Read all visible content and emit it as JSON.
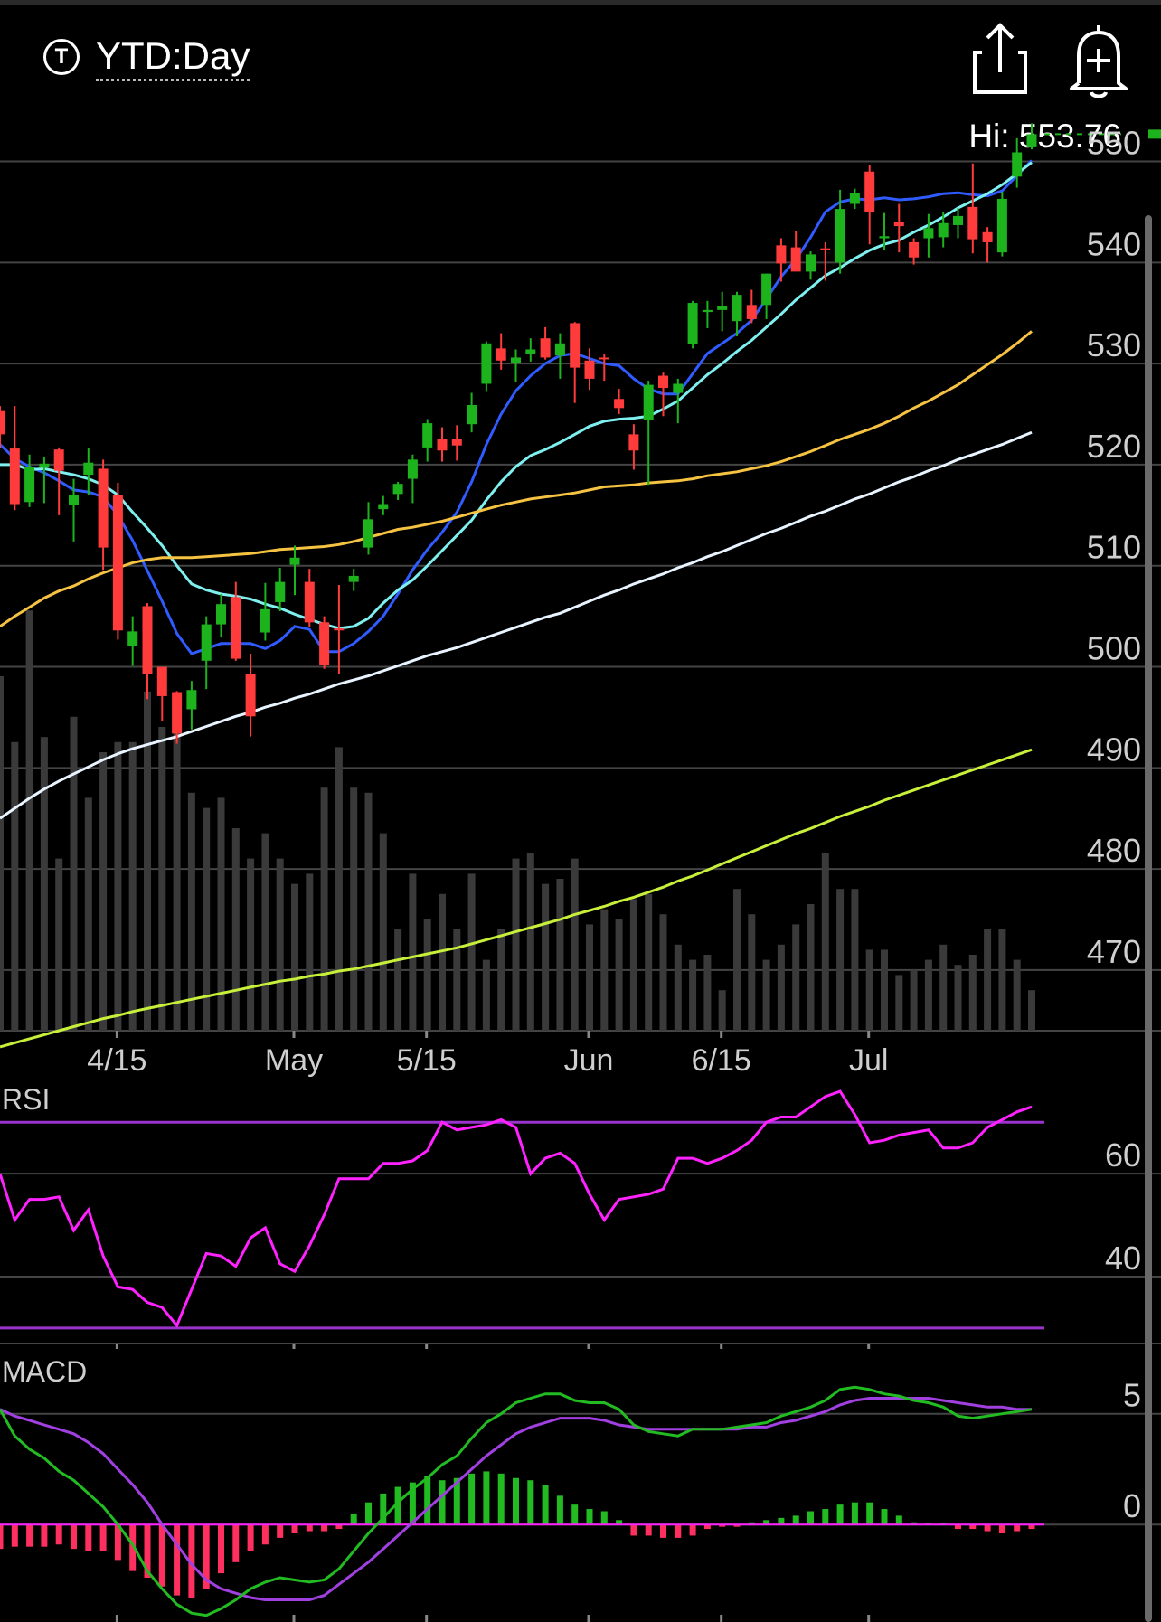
{
  "header": {
    "badge_letter": "T",
    "period_label": "YTD:Day",
    "share_icon": "share-icon",
    "alert_icon": "bell-plus-icon",
    "hi_label": "Hi: 553.76"
  },
  "colors": {
    "up": "#1db31d",
    "down": "#ff3b3b",
    "ma_blue": "#2f5bff",
    "ma_cyan": "#7ff0f0",
    "ma_orange": "#f5c242",
    "ma_white": "#e8f4ff",
    "ma_lime": "#c8f03a",
    "rsi": "#ff22ff",
    "rsi_bands": "#9933cc",
    "macd_line": "#22bb22",
    "signal_line": "#a040e0",
    "hist_pos": "#22bb22",
    "hist_neg": "#ff2f5f",
    "volume": "#3a3a3a",
    "grid": "#444444"
  },
  "chart_data": [
    {
      "type": "candlestick",
      "panel": "price",
      "x_labels": [
        "4/15",
        "May",
        "5/15",
        "Jun",
        "6/15",
        "Jul"
      ],
      "y_ticks": [
        "550",
        "540",
        "530",
        "520",
        "510",
        "500",
        "490",
        "480",
        "470"
      ],
      "ylim": [
        464,
        553
      ],
      "high_label": "Hi: 553.76",
      "candles": [
        [
          525.3,
          523.0,
          525.8,
          521.6
        ],
        [
          521.6,
          516.1,
          525.8,
          515.5
        ],
        [
          516.3,
          519.8,
          521.0,
          515.8
        ],
        [
          519.7,
          520.1,
          520.8,
          516.2
        ],
        [
          521.5,
          519.4,
          521.7,
          515.0
        ],
        [
          516.0,
          517.0,
          518.6,
          512.4
        ],
        [
          519.0,
          520.2,
          521.6,
          517.0
        ],
        [
          519.6,
          511.8,
          520.5,
          509.6
        ],
        [
          517.0,
          503.6,
          518.2,
          502.7
        ],
        [
          502.1,
          503.5,
          505.0,
          500.1
        ],
        [
          506.0,
          499.3,
          506.3,
          496.8
        ],
        [
          500.0,
          497.1,
          500.0,
          494.6
        ],
        [
          497.5,
          493.4,
          497.6,
          492.4
        ],
        [
          495.8,
          497.7,
          498.6,
          493.8
        ],
        [
          500.6,
          504.2,
          505.0,
          497.8
        ],
        [
          504.2,
          506.2,
          507.2,
          503.0
        ],
        [
          506.9,
          500.8,
          508.4,
          500.6
        ],
        [
          499.3,
          495.1,
          501.3,
          493.1
        ],
        [
          503.4,
          505.7,
          508.3,
          502.6
        ],
        [
          506.4,
          508.4,
          509.8,
          505.5
        ],
        [
          510.1,
          510.8,
          512.0,
          507.1
        ],
        [
          508.4,
          504.4,
          509.7,
          503.9
        ],
        [
          504.4,
          500.2,
          505.0,
          499.8
        ],
        [
          503.8,
          503.6,
          508.1,
          499.3
        ],
        [
          508.4,
          509.0,
          509.7,
          507.5
        ],
        [
          511.8,
          514.6,
          516.3,
          511.1
        ],
        [
          515.6,
          516.1,
          516.9,
          515.0
        ],
        [
          517.1,
          518.1,
          518.3,
          516.5
        ],
        [
          518.6,
          520.5,
          521.0,
          516.2
        ],
        [
          521.7,
          524.1,
          524.5,
          520.3
        ],
        [
          522.5,
          521.4,
          523.7,
          520.3
        ],
        [
          522.5,
          521.9,
          523.9,
          520.4
        ],
        [
          524.0,
          525.9,
          527.1,
          523.2
        ],
        [
          528.0,
          532.0,
          532.2,
          527.2
        ],
        [
          531.5,
          530.3,
          533.0,
          529.4
        ],
        [
          530.1,
          530.6,
          531.4,
          528.2
        ],
        [
          531.0,
          531.4,
          532.5,
          530.2
        ],
        [
          532.5,
          530.6,
          533.6,
          530.4
        ],
        [
          530.8,
          532.0,
          533.0,
          528.5
        ],
        [
          534.0,
          529.6,
          534.1,
          526.1
        ],
        [
          530.3,
          528.5,
          531.5,
          527.4
        ],
        [
          530.6,
          530.5,
          531.0,
          528.3
        ],
        [
          526.5,
          525.6,
          527.5,
          525.0
        ],
        [
          523.0,
          521.4,
          524.0,
          519.5
        ],
        [
          524.4,
          527.9,
          528.3,
          518.0
        ],
        [
          528.8,
          527.6,
          529.1,
          524.8
        ],
        [
          527.1,
          528.0,
          528.5,
          524.1
        ],
        [
          531.9,
          536.0,
          536.2,
          531.5
        ],
        [
          535.1,
          535.3,
          536.2,
          533.5
        ],
        [
          535.3,
          535.7,
          537.1,
          533.2
        ],
        [
          534.2,
          536.8,
          537.1,
          532.7
        ],
        [
          535.8,
          534.4,
          537.3,
          534.0
        ],
        [
          535.8,
          538.9,
          538.9,
          534.4
        ],
        [
          541.7,
          539.9,
          542.4,
          538.1
        ],
        [
          541.5,
          539.1,
          543.1,
          539.2
        ],
        [
          539.1,
          540.8,
          541.1,
          538.3
        ],
        [
          541.4,
          541.3,
          542.0,
          538.2
        ],
        [
          540.0,
          545.3,
          547.2,
          538.9
        ],
        [
          545.8,
          546.9,
          547.3,
          545.3
        ],
        [
          549.0,
          545.0,
          549.6,
          541.8
        ],
        [
          542.4,
          542.6,
          544.9,
          541.2
        ],
        [
          544.0,
          543.6,
          545.8,
          541.0
        ],
        [
          542.0,
          540.5,
          542.4,
          539.8
        ],
        [
          542.4,
          543.4,
          544.8,
          540.5
        ],
        [
          542.5,
          543.9,
          545.0,
          541.5
        ],
        [
          543.7,
          544.6,
          545.4,
          542.4
        ],
        [
          545.5,
          542.3,
          549.8,
          540.9
        ],
        [
          543.0,
          542.0,
          543.5,
          540.0
        ],
        [
          541.0,
          546.3,
          547.0,
          540.6
        ],
        [
          548.5,
          550.9,
          552.3,
          547.4
        ],
        [
          551.4,
          552.7,
          553.76,
          551.2
        ]
      ],
      "volume": [
        0.7,
        0.57,
        0.83,
        0.58,
        0.34,
        0.62,
        0.46,
        0.55,
        0.57,
        0.57,
        0.67,
        0.6,
        0.63,
        0.47,
        0.44,
        0.46,
        0.4,
        0.34,
        0.39,
        0.34,
        0.29,
        0.31,
        0.48,
        0.56,
        0.48,
        0.47,
        0.39,
        0.2,
        0.31,
        0.22,
        0.27,
        0.2,
        0.31,
        0.14,
        0.2,
        0.34,
        0.35,
        0.29,
        0.3,
        0.34,
        0.21,
        0.24,
        0.22,
        0.26,
        0.27,
        0.23,
        0.17,
        0.14,
        0.15,
        0.08,
        0.28,
        0.23,
        0.14,
        0.17,
        0.21,
        0.25,
        0.35,
        0.28,
        0.28,
        0.16,
        0.16,
        0.11,
        0.12,
        0.14,
        0.17,
        0.13,
        0.15,
        0.2,
        0.2,
        0.14,
        0.08
      ],
      "moving_averages": [
        {
          "color_key": "ma_blue",
          "values": [
            522,
            520.6,
            519.8,
            519.2,
            518.4,
            517.5,
            517.3,
            516.8,
            515.0,
            512.5,
            509.5,
            506.5,
            503.3,
            501.3,
            501.8,
            502.3,
            502.3,
            502.3,
            501.8,
            502.6,
            504.0,
            503.7,
            501.5,
            501.5,
            502.3,
            503.5,
            505.0,
            507.2,
            509.6,
            511.6,
            513.3,
            515.3,
            518.3,
            522.0,
            525.0,
            527.3,
            528.8,
            530.0,
            530.8,
            531.0,
            530.5,
            530.0,
            529.8,
            528.5,
            527.5,
            527.0,
            527.0,
            529.0,
            531.0,
            532.0,
            533.0,
            534.3,
            536.4,
            538.6,
            540.3,
            542.5,
            545.0,
            546.0,
            546.3,
            546.2,
            546.4,
            546.2,
            546.3,
            546.5,
            546.8,
            546.9,
            546.7,
            546.6,
            547.1,
            548.6,
            550.1
          ]
        },
        {
          "color_key": "ma_cyan",
          "values": [
            520.0,
            520.0,
            519.5,
            519.6,
            519.3,
            519.0,
            518.6,
            518.0,
            517.0,
            515.3,
            513.7,
            512.0,
            510.0,
            508.2,
            507.6,
            507.2,
            507.0,
            506.7,
            506.2,
            505.8,
            505.2,
            504.7,
            504.2,
            503.8,
            504.0,
            504.8,
            506.3,
            507.6,
            508.6,
            510.0,
            511.5,
            513.0,
            514.5,
            516.5,
            518.3,
            519.8,
            520.9,
            521.5,
            522.2,
            523.0,
            523.8,
            524.3,
            524.5,
            524.6,
            524.8,
            525.5,
            526.3,
            527.6,
            528.9,
            530.0,
            531.2,
            532.3,
            533.6,
            534.9,
            536.3,
            537.5,
            538.7,
            539.5,
            540.4,
            541.2,
            541.8,
            542.2,
            543.0,
            543.7,
            544.5,
            545.4,
            546.1,
            546.8,
            547.7,
            548.8,
            549.9
          ]
        },
        {
          "color_key": "ma_orange",
          "values": [
            504.0,
            505.0,
            505.9,
            506.8,
            507.5,
            508.0,
            508.7,
            509.3,
            509.8,
            510.3,
            510.6,
            510.8,
            510.8,
            510.8,
            510.9,
            511.0,
            511.1,
            511.2,
            511.4,
            511.6,
            511.7,
            511.8,
            511.9,
            512.1,
            512.4,
            512.8,
            513.2,
            513.6,
            513.8,
            514.1,
            514.4,
            514.8,
            515.2,
            515.6,
            516.0,
            516.3,
            516.6,
            516.8,
            517.0,
            517.2,
            517.5,
            517.8,
            517.9,
            518.0,
            518.2,
            518.3,
            518.4,
            518.6,
            518.9,
            519.1,
            519.3,
            519.6,
            519.9,
            520.3,
            520.8,
            521.3,
            521.9,
            522.5,
            523.0,
            523.5,
            524.1,
            524.8,
            525.6,
            526.3,
            527.1,
            527.9,
            528.9,
            529.9,
            530.9,
            532.0,
            533.2
          ]
        },
        {
          "color_key": "ma_white",
          "values": [
            485.0,
            486.0,
            487.0,
            487.9,
            488.7,
            489.4,
            490.1,
            490.8,
            491.4,
            491.9,
            492.3,
            492.7,
            493.1,
            493.6,
            494.1,
            494.6,
            495.1,
            495.5,
            496.0,
            496.4,
            496.9,
            497.3,
            497.8,
            498.3,
            498.7,
            499.1,
            499.6,
            500.1,
            500.6,
            501.1,
            501.5,
            501.9,
            502.4,
            502.9,
            503.4,
            503.9,
            504.4,
            504.9,
            505.3,
            505.9,
            506.5,
            507.1,
            507.6,
            508.2,
            508.7,
            509.2,
            509.8,
            510.3,
            510.9,
            511.4,
            512.0,
            512.6,
            513.2,
            513.7,
            514.3,
            514.9,
            515.4,
            516.0,
            516.6,
            517.1,
            517.7,
            518.3,
            518.8,
            519.4,
            519.9,
            520.5,
            521.0,
            521.5,
            522.0,
            522.6,
            523.2
          ]
        },
        {
          "color_key": "ma_lime",
          "values": [
            462.4,
            462.8,
            463.2,
            463.6,
            464.0,
            464.4,
            464.8,
            465.2,
            465.5,
            465.9,
            466.2,
            466.5,
            466.8,
            467.1,
            467.4,
            467.7,
            468.0,
            468.3,
            468.6,
            468.9,
            469.1,
            469.4,
            469.6,
            469.9,
            470.1,
            470.4,
            470.7,
            471.0,
            471.3,
            471.6,
            471.9,
            472.2,
            472.6,
            473.0,
            473.4,
            473.8,
            474.2,
            474.6,
            475.0,
            475.5,
            475.9,
            476.3,
            476.8,
            477.2,
            477.7,
            478.2,
            478.8,
            479.3,
            479.9,
            480.5,
            481.1,
            481.7,
            482.3,
            482.9,
            483.5,
            484.0,
            484.6,
            485.2,
            485.7,
            486.2,
            486.8,
            487.3,
            487.8,
            488.3,
            488.8,
            489.3,
            489.8,
            490.3,
            490.8,
            491.3,
            491.8
          ]
        }
      ]
    },
    {
      "type": "line",
      "panel": "rsi",
      "title": "RSI",
      "y_ticks": [
        "60",
        "40"
      ],
      "ylim": [
        27,
        79
      ],
      "bands": [
        30,
        70
      ],
      "values": [
        60,
        51,
        55,
        55,
        55.5,
        49,
        53,
        44,
        38,
        37.5,
        35,
        34,
        30.5,
        37.5,
        44.5,
        44,
        42,
        47.5,
        49.5,
        42.5,
        41,
        46,
        52,
        59,
        59,
        59,
        62,
        62,
        62.5,
        64.5,
        70,
        68.5,
        69,
        69.5,
        70.5,
        69,
        60,
        63,
        64,
        62,
        56,
        51,
        55,
        55.5,
        56,
        57,
        63,
        63,
        62,
        63,
        64.5,
        66.5,
        70,
        71,
        71,
        73,
        75,
        76,
        71.5,
        66,
        66.5,
        67.5,
        68,
        68.5,
        65,
        65,
        66,
        69,
        70.5,
        72,
        73
      ]
    },
    {
      "type": "line",
      "panel": "macd",
      "title": "MACD",
      "y_ticks": [
        "5",
        "0"
      ],
      "ylim": [
        -4.4,
        7.6
      ],
      "macd": [
        5.2,
        4.0,
        3.4,
        3.0,
        2.4,
        2.0,
        1.4,
        0.8,
        0.0,
        -0.9,
        -2.1,
        -2.9,
        -3.6,
        -4.0,
        -4.1,
        -3.8,
        -3.4,
        -2.9,
        -2.6,
        -2.4,
        -2.5,
        -2.6,
        -2.5,
        -2.0,
        -1.2,
        -0.4,
        0.3,
        1.0,
        1.6,
        2.1,
        2.7,
        3.1,
        3.9,
        4.6,
        5.0,
        5.5,
        5.7,
        5.9,
        5.9,
        5.6,
        5.5,
        5.5,
        5.2,
        4.5,
        4.2,
        4.1,
        4.0,
        4.3,
        4.3,
        4.3,
        4.4,
        4.5,
        4.6,
        4.9,
        5.1,
        5.3,
        5.6,
        6.1,
        6.2,
        6.1,
        5.9,
        5.8,
        5.6,
        5.5,
        5.3,
        4.9,
        4.8,
        4.9,
        5.0,
        5.1,
        5.2
      ],
      "signal": [
        5.2,
        4.9,
        4.7,
        4.5,
        4.3,
        4.1,
        3.7,
        3.2,
        2.5,
        1.8,
        1.0,
        0.0,
        -0.9,
        -1.8,
        -2.5,
        -2.9,
        -3.1,
        -3.3,
        -3.4,
        -3.4,
        -3.4,
        -3.4,
        -3.2,
        -2.7,
        -2.2,
        -1.7,
        -1.1,
        -0.5,
        0.1,
        0.7,
        1.3,
        1.9,
        2.5,
        3.1,
        3.6,
        4.1,
        4.4,
        4.6,
        4.8,
        4.8,
        4.8,
        4.7,
        4.5,
        4.4,
        4.3,
        4.3,
        4.3,
        4.3,
        4.3,
        4.3,
        4.3,
        4.4,
        4.4,
        4.6,
        4.7,
        4.9,
        5.1,
        5.4,
        5.6,
        5.7,
        5.7,
        5.7,
        5.7,
        5.7,
        5.6,
        5.5,
        5.4,
        5.3,
        5.3,
        5.2,
        5.2
      ],
      "histogram": [
        -1.1,
        -1.0,
        -1.0,
        -1.0,
        -0.9,
        -1.1,
        -1.2,
        -1.2,
        -1.6,
        -2.1,
        -2.4,
        -2.8,
        -3.2,
        -3.3,
        -2.9,
        -2.2,
        -1.7,
        -1.2,
        -0.9,
        -0.6,
        -0.4,
        -0.3,
        -0.3,
        -0.2,
        0.5,
        1.0,
        1.4,
        1.7,
        1.9,
        2.2,
        2.0,
        2.1,
        2.3,
        2.4,
        2.3,
        2.1,
        2.0,
        1.8,
        1.3,
        0.9,
        0.7,
        0.6,
        0.2,
        -0.5,
        -0.5,
        -0.6,
        -0.6,
        -0.5,
        -0.2,
        -0.1,
        -0.1,
        0.1,
        0.2,
        0.3,
        0.4,
        0.6,
        0.7,
        0.9,
        1.0,
        1.0,
        0.7,
        0.4,
        0.1,
        0.05,
        0.05,
        -0.2,
        -0.2,
        -0.3,
        -0.4,
        -0.3,
        -0.2
      ]
    }
  ]
}
